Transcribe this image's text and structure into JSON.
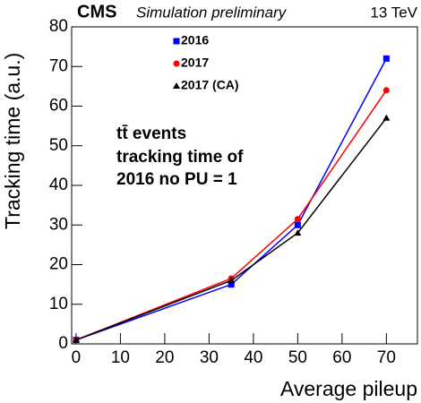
{
  "chart_data": {
    "type": "line",
    "title": "CMS",
    "subtitle": "Simulation preliminary",
    "energy": "13 TeV",
    "annotations": [
      "tt̄ events",
      "tracking time of",
      "2016 no PU = 1"
    ],
    "x_label": "Average pileup",
    "y_label": "Tracking time (a.u.)",
    "x": [
      0,
      35,
      50,
      70
    ],
    "series": [
      {
        "name": "2016",
        "color": "#0000ff",
        "marker": "square",
        "values": [
          1,
          15,
          30,
          72
        ]
      },
      {
        "name": "2017",
        "color": "#ff0000",
        "marker": "circle",
        "values": [
          1,
          16.5,
          31.5,
          64
        ]
      },
      {
        "name": "2017 (CA)",
        "color": "#000000",
        "marker": "triangle",
        "values": [
          1,
          16,
          28,
          57
        ]
      }
    ],
    "xlim": [
      -1,
      77
    ],
    "xticks": [
      0,
      10,
      20,
      30,
      40,
      50,
      60,
      70
    ],
    "ylim": [
      0,
      80
    ],
    "yticks": [
      0,
      10,
      20,
      30,
      40,
      50,
      60,
      70,
      80
    ]
  }
}
